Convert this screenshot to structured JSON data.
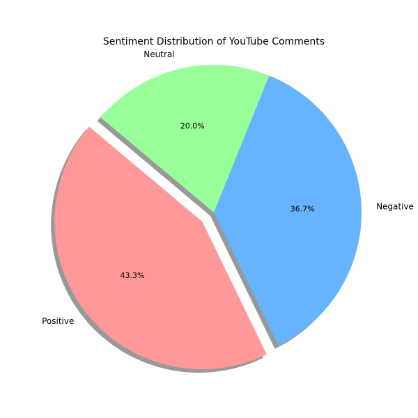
{
  "chart_data": {
    "type": "pie",
    "title": "Sentiment Distribution of YouTube Comments",
    "slices": [
      {
        "label": "Positive",
        "value": 43.3,
        "pct_label": "43.3%",
        "color": "#ff9999",
        "exploded": true
      },
      {
        "label": "Negative",
        "value": 36.7,
        "pct_label": "36.7%",
        "color": "#66b3ff",
        "exploded": false
      },
      {
        "label": "Neutral",
        "value": 20.0,
        "pct_label": "20.0%",
        "color": "#99ff99",
        "exploded": false
      }
    ],
    "start_angle_deg": 140,
    "shadow": true,
    "legend": "none"
  }
}
